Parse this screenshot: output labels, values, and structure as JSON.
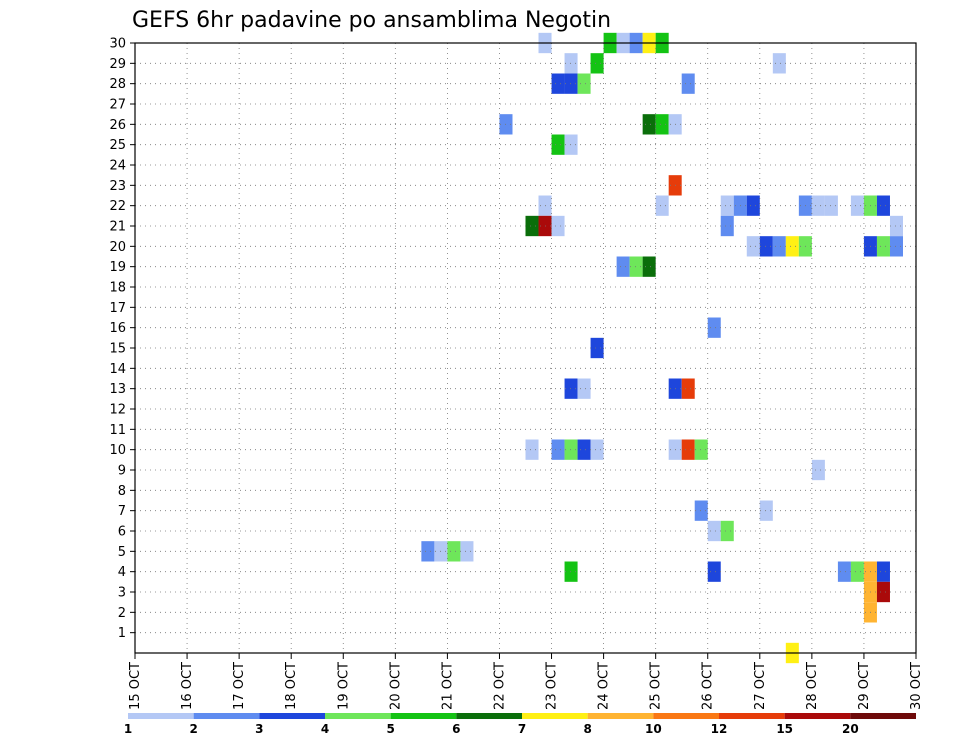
{
  "chart_data": {
    "type": "heatmap",
    "title": "GEFS 6hr padavine po ansamblima Negotin",
    "xlabel": "",
    "ylabel": "",
    "x_ticks": [
      "15 OCT",
      "16 OCT",
      "17 OCT",
      "18 OCT",
      "19 OCT",
      "20 OCT",
      "21 OCT",
      "22 OCT",
      "23 OCT",
      "24 OCT",
      "25 OCT",
      "26 OCT",
      "27 OCT",
      "28 OCT",
      "29 OCT",
      "30 OCT"
    ],
    "xlim": [
      15,
      30
    ],
    "y_ticks": [
      "1",
      "2",
      "3",
      "4",
      "5",
      "6",
      "7",
      "8",
      "9",
      "10",
      "11",
      "12",
      "13",
      "14",
      "15",
      "16",
      "17",
      "18",
      "19",
      "20",
      "21",
      "22",
      "23",
      "24",
      "25",
      "26",
      "27",
      "28",
      "29",
      "30"
    ],
    "ylim": [
      0,
      30
    ],
    "grid": true,
    "legend": {
      "placement": "bottom",
      "labels": [
        "1",
        "2",
        "3",
        "4",
        "5",
        "6",
        "7",
        "8",
        "10",
        "12",
        "15",
        "20"
      ],
      "colors": [
        "#b4c8f5",
        "#5f8cf0",
        "#1e46dc",
        "#6ee65a",
        "#14c314",
        "#0a6e0a",
        "#fff014",
        "#ffb432",
        "#fa7814",
        "#e63c0a",
        "#aa0a0a",
        "#6e0a0a"
      ]
    },
    "unit_note": "cells: [day_of_month, member, category_index]",
    "cells": [
      [
        22.75,
        30,
        0
      ],
      [
        24.0,
        30,
        4
      ],
      [
        24.25,
        30,
        0
      ],
      [
        24.5,
        30,
        1
      ],
      [
        24.75,
        30,
        6
      ],
      [
        25.0,
        30,
        4
      ],
      [
        23.25,
        29,
        0
      ],
      [
        23.75,
        29,
        4
      ],
      [
        27.25,
        29,
        0
      ],
      [
        23.0,
        28,
        2
      ],
      [
        23.25,
        28,
        2
      ],
      [
        23.5,
        28,
        3
      ],
      [
        25.5,
        28,
        1
      ],
      [
        22.0,
        26,
        1
      ],
      [
        24.75,
        26,
        5
      ],
      [
        25.0,
        26,
        4
      ],
      [
        25.25,
        26,
        0
      ],
      [
        23.0,
        25,
        4
      ],
      [
        23.25,
        25,
        0
      ],
      [
        25.25,
        23,
        9
      ],
      [
        22.75,
        22,
        0
      ],
      [
        25.0,
        22,
        0
      ],
      [
        26.25,
        22,
        0
      ],
      [
        26.5,
        22,
        1
      ],
      [
        26.75,
        22,
        2
      ],
      [
        27.75,
        22,
        1
      ],
      [
        28.0,
        22,
        0
      ],
      [
        28.25,
        22,
        0
      ],
      [
        28.75,
        22,
        0
      ],
      [
        29.0,
        22,
        3
      ],
      [
        29.25,
        22,
        2
      ],
      [
        22.5,
        21,
        5
      ],
      [
        22.75,
        21,
        10
      ],
      [
        23.0,
        21,
        0
      ],
      [
        26.25,
        21,
        1
      ],
      [
        29.5,
        21,
        0
      ],
      [
        26.75,
        20,
        0
      ],
      [
        27.0,
        20,
        2
      ],
      [
        27.25,
        20,
        1
      ],
      [
        27.5,
        20,
        6
      ],
      [
        27.75,
        20,
        3
      ],
      [
        29.0,
        20,
        2
      ],
      [
        29.25,
        20,
        3
      ],
      [
        29.5,
        20,
        1
      ],
      [
        24.25,
        19,
        1
      ],
      [
        24.5,
        19,
        3
      ],
      [
        24.75,
        19,
        5
      ],
      [
        26.0,
        16,
        1
      ],
      [
        23.75,
        15,
        2
      ],
      [
        23.25,
        13,
        2
      ],
      [
        23.5,
        13,
        0
      ],
      [
        25.25,
        13,
        2
      ],
      [
        25.5,
        13,
        9
      ],
      [
        22.5,
        10,
        0
      ],
      [
        23.0,
        10,
        1
      ],
      [
        23.25,
        10,
        3
      ],
      [
        23.5,
        10,
        2
      ],
      [
        23.75,
        10,
        0
      ],
      [
        25.25,
        10,
        0
      ],
      [
        25.5,
        10,
        9
      ],
      [
        25.75,
        10,
        3
      ],
      [
        28.0,
        9,
        0
      ],
      [
        25.75,
        7,
        1
      ],
      [
        27.0,
        7,
        0
      ],
      [
        26.0,
        6,
        0
      ],
      [
        26.25,
        6,
        3
      ],
      [
        20.5,
        5,
        1
      ],
      [
        20.75,
        5,
        0
      ],
      [
        21.0,
        5,
        3
      ],
      [
        21.25,
        5,
        0
      ],
      [
        23.25,
        4,
        4
      ],
      [
        26.0,
        4,
        2
      ],
      [
        28.5,
        4,
        1
      ],
      [
        28.75,
        4,
        3
      ],
      [
        29.0,
        4,
        7
      ],
      [
        29.25,
        4,
        2
      ],
      [
        29.0,
        3,
        7
      ],
      [
        29.25,
        3,
        10
      ],
      [
        29.0,
        2,
        7
      ],
      [
        27.5,
        0,
        6
      ]
    ]
  }
}
